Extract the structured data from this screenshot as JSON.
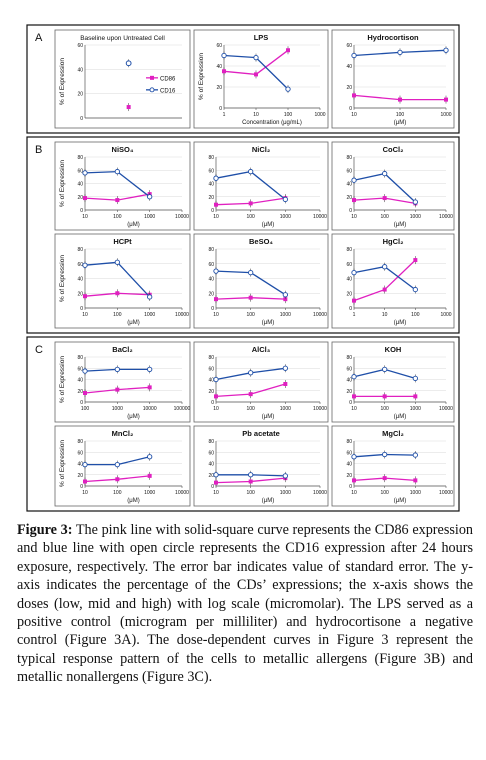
{
  "figure": {
    "sections": [
      {
        "letter": "A",
        "panels": [
          {
            "title": "Baseline upon Untreated Cell",
            "ylabel": "% of Expression",
            "xlabel": "",
            "type": "baseline",
            "ylim": [
              0,
              60
            ],
            "yticks": [
              "60",
              "40",
              "20",
              "0"
            ],
            "legend": [
              "CD86",
              "CD16"
            ],
            "chart_data": {
              "type": "scatter",
              "series": [
                {
                  "name": "CD86",
                  "values": [
                    9
                  ]
                },
                {
                  "name": "CD16",
                  "values": [
                    45
                  ]
                }
              ]
            }
          },
          {
            "title": "LPS",
            "ylabel": "% of Expression",
            "xlabel": "Concentration (μg/mL)",
            "type": "log",
            "ylim": [
              0,
              60
            ],
            "yticks": [
              "60",
              "40",
              "20",
              "0"
            ],
            "xticks": [
              "1",
              "10",
              "100",
              "1000"
            ],
            "chart_data": {
              "type": "line",
              "x": [
                1,
                10,
                100
              ],
              "series": [
                {
                  "name": "CD86",
                  "values": [
                    35,
                    32,
                    55
                  ]
                },
                {
                  "name": "CD16",
                  "values": [
                    50,
                    48,
                    18
                  ]
                }
              ]
            }
          },
          {
            "title": "Hydrocortison",
            "ylabel": "",
            "xlabel": "(μM)",
            "type": "log",
            "ylim": [
              0,
              60
            ],
            "yticks": [
              "60",
              "40",
              "20",
              "0"
            ],
            "xticks": [
              "10",
              "100",
              "1000"
            ],
            "chart_data": {
              "type": "line",
              "x": [
                10,
                100,
                1000
              ],
              "series": [
                {
                  "name": "CD86",
                  "values": [
                    12,
                    8,
                    8
                  ]
                },
                {
                  "name": "CD16",
                  "values": [
                    50,
                    53,
                    55
                  ]
                }
              ]
            }
          }
        ]
      },
      {
        "letter": "B",
        "panels": [
          {
            "title": "NiSO₄",
            "ylabel": "% of Expression",
            "xlabel": "(μM)",
            "type": "log",
            "ylim": [
              0,
              80
            ],
            "yticks": [
              "80",
              "60",
              "40",
              "20",
              "0"
            ],
            "xticks": [
              "10",
              "100",
              "1000",
              "10000"
            ],
            "chart_data": {
              "type": "line",
              "x": [
                10,
                100,
                1000
              ],
              "series": [
                {
                  "name": "CD86",
                  "values": [
                    18,
                    15,
                    24
                  ]
                },
                {
                  "name": "CD16",
                  "values": [
                    56,
                    58,
                    20
                  ]
                }
              ]
            }
          },
          {
            "title": "NiCl₂",
            "ylabel": "",
            "xlabel": "(μM)",
            "type": "log",
            "ylim": [
              0,
              80
            ],
            "yticks": [
              "80",
              "60",
              "40",
              "20",
              "0"
            ],
            "xticks": [
              "10",
              "100",
              "1000",
              "10000"
            ],
            "chart_data": {
              "type": "line",
              "x": [
                10,
                100,
                1000
              ],
              "series": [
                {
                  "name": "CD86",
                  "values": [
                    8,
                    10,
                    18
                  ]
                },
                {
                  "name": "CD16",
                  "values": [
                    48,
                    58,
                    16
                  ]
                }
              ]
            }
          },
          {
            "title": "CoCl₂",
            "ylabel": "",
            "xlabel": "(μM)",
            "type": "log",
            "ylim": [
              0,
              80
            ],
            "yticks": [
              "80",
              "60",
              "40",
              "20",
              "0"
            ],
            "xticks": [
              "10",
              "100",
              "1000",
              "10000"
            ],
            "chart_data": {
              "type": "line",
              "x": [
                10,
                100,
                1000
              ],
              "series": [
                {
                  "name": "CD86",
                  "values": [
                    15,
                    18,
                    10
                  ]
                },
                {
                  "name": "CD16",
                  "values": [
                    45,
                    55,
                    12
                  ]
                }
              ]
            }
          },
          {
            "title": "HCPt",
            "ylabel": "% of Expression",
            "xlabel": "(μM)",
            "type": "log",
            "ylim": [
              0,
              80
            ],
            "yticks": [
              "80",
              "60",
              "40",
              "20",
              "0"
            ],
            "xticks": [
              "10",
              "100",
              "1000",
              "10000"
            ],
            "chart_data": {
              "type": "line",
              "x": [
                10,
                100,
                1000
              ],
              "series": [
                {
                  "name": "CD86",
                  "values": [
                    16,
                    20,
                    18
                  ]
                },
                {
                  "name": "CD16",
                  "values": [
                    58,
                    62,
                    15
                  ]
                }
              ]
            }
          },
          {
            "title": "BeSO₄",
            "ylabel": "",
            "xlabel": "(μM)",
            "type": "log",
            "ylim": [
              0,
              80
            ],
            "yticks": [
              "80",
              "60",
              "40",
              "20",
              "0"
            ],
            "xticks": [
              "10",
              "100",
              "1000",
              "10000"
            ],
            "chart_data": {
              "type": "line",
              "x": [
                10,
                100,
                1000
              ],
              "series": [
                {
                  "name": "CD86",
                  "values": [
                    12,
                    14,
                    12
                  ]
                },
                {
                  "name": "CD16",
                  "values": [
                    50,
                    48,
                    18
                  ]
                }
              ]
            }
          },
          {
            "title": "HgCl₂",
            "ylabel": "",
            "xlabel": "(μM)",
            "type": "log",
            "ylim": [
              0,
              80
            ],
            "yticks": [
              "80",
              "60",
              "40",
              "20",
              "0"
            ],
            "xticks": [
              "1",
              "10",
              "100",
              "1000"
            ],
            "chart_data": {
              "type": "line",
              "x": [
                1,
                10,
                100
              ],
              "series": [
                {
                  "name": "CD86",
                  "values": [
                    10,
                    25,
                    65
                  ]
                },
                {
                  "name": "CD16",
                  "values": [
                    48,
                    56,
                    25
                  ]
                }
              ]
            }
          }
        ]
      },
      {
        "letter": "C",
        "panels": [
          {
            "title": "BaCl₂",
            "ylabel": "% of Expression",
            "xlabel": "(μM)",
            "type": "log",
            "ylim": [
              0,
              80
            ],
            "yticks": [
              "80",
              "60",
              "40",
              "20",
              "0"
            ],
            "xticks": [
              "100",
              "1000",
              "10000",
              "100000"
            ],
            "chart_data": {
              "type": "line",
              "x": [
                100,
                1000,
                10000
              ],
              "series": [
                {
                  "name": "CD86",
                  "values": [
                    16,
                    22,
                    26
                  ]
                },
                {
                  "name": "CD16",
                  "values": [
                    55,
                    58,
                    58
                  ]
                }
              ]
            }
          },
          {
            "title": "AlCl₃",
            "ylabel": "",
            "xlabel": "(μM)",
            "type": "log",
            "ylim": [
              0,
              80
            ],
            "yticks": [
              "80",
              "60",
              "40",
              "20",
              "0"
            ],
            "xticks": [
              "10",
              "100",
              "1000",
              "10000"
            ],
            "chart_data": {
              "type": "line",
              "x": [
                10,
                100,
                1000
              ],
              "series": [
                {
                  "name": "CD86",
                  "values": [
                    10,
                    14,
                    32
                  ]
                },
                {
                  "name": "CD16",
                  "values": [
                    40,
                    52,
                    60
                  ]
                }
              ]
            }
          },
          {
            "title": "KOH",
            "ylabel": "",
            "xlabel": "(μM)",
            "type": "log",
            "ylim": [
              0,
              80
            ],
            "yticks": [
              "80",
              "60",
              "40",
              "20",
              "0"
            ],
            "xticks": [
              "10",
              "100",
              "1000",
              "10000"
            ],
            "chart_data": {
              "type": "line",
              "x": [
                10,
                100,
                1000
              ],
              "series": [
                {
                  "name": "CD86",
                  "values": [
                    10,
                    10,
                    10
                  ]
                },
                {
                  "name": "CD16",
                  "values": [
                    45,
                    58,
                    42
                  ]
                }
              ]
            }
          },
          {
            "title": "MnCl₂",
            "ylabel": "% of Expression",
            "xlabel": "(μM)",
            "type": "log",
            "ylim": [
              0,
              80
            ],
            "yticks": [
              "80",
              "60",
              "40",
              "20",
              "0"
            ],
            "xticks": [
              "10",
              "100",
              "1000",
              "10000"
            ],
            "chart_data": {
              "type": "line",
              "x": [
                10,
                100,
                1000
              ],
              "series": [
                {
                  "name": "CD86",
                  "values": [
                    8,
                    12,
                    18
                  ]
                },
                {
                  "name": "CD16",
                  "values": [
                    38,
                    38,
                    52
                  ]
                }
              ]
            }
          },
          {
            "title": "Pb acetate",
            "ylabel": "",
            "xlabel": "(μM)",
            "type": "log",
            "ylim": [
              0,
              80
            ],
            "yticks": [
              "80",
              "60",
              "40",
              "20",
              "0"
            ],
            "xticks": [
              "10",
              "100",
              "1000",
              "10000"
            ],
            "chart_data": {
              "type": "line",
              "x": [
                10,
                100,
                1000
              ],
              "series": [
                {
                  "name": "CD86",
                  "values": [
                    6,
                    8,
                    14
                  ]
                },
                {
                  "name": "CD16",
                  "values": [
                    20,
                    20,
                    18
                  ]
                }
              ]
            }
          },
          {
            "title": "MgCl₂",
            "ylabel": "",
            "xlabel": "(μM)",
            "type": "log",
            "ylim": [
              0,
              80
            ],
            "yticks": [
              "80",
              "60",
              "40",
              "20",
              "0"
            ],
            "xticks": [
              "10",
              "100",
              "1000",
              "10000"
            ],
            "chart_data": {
              "type": "line",
              "x": [
                10,
                100,
                1000
              ],
              "series": [
                {
                  "name": "CD86",
                  "values": [
                    10,
                    14,
                    10
                  ]
                },
                {
                  "name": "CD16",
                  "values": [
                    52,
                    56,
                    55
                  ]
                }
              ]
            }
          }
        ]
      }
    ],
    "colors": {
      "cd86": "#e020c0",
      "cd16": "#1f4fa8",
      "frame": "#111111"
    }
  },
  "caption": {
    "label": "Figure 3:",
    "text": " The pink line with solid-square curve represents the CD86 expression and blue line with open circle represents the CD16 expression after 24 hours exposure, respectively. The error bar indicates value of standard error. The y-axis indicates the percentage of the CDs’ expressions; the x-axis shows the doses (low, mid and high) with log scale (micromolar). The LPS served as a positive control (microgram per milliliter) and hydrocortisone a negative control (Figure 3A). The dose-dependent curves in Figure 3 represent the typical response pattern of the cells to metallic allergens (Figure 3B) and metallic nonallergens (Figure 3C)."
  }
}
